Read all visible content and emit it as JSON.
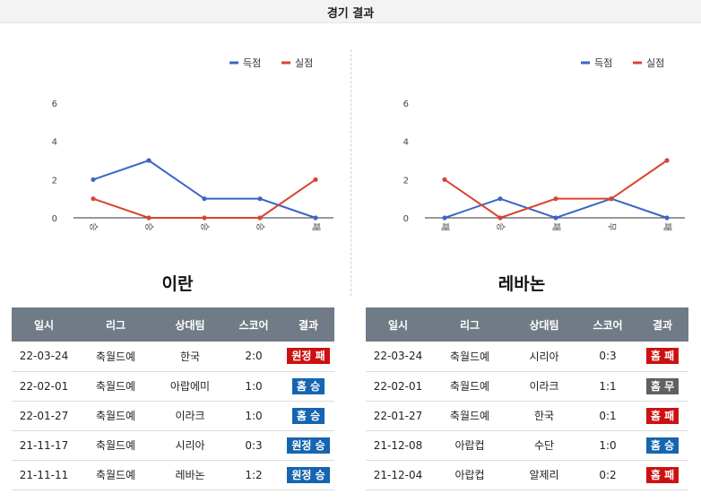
{
  "header": {
    "title": "경기 결과"
  },
  "colors": {
    "scored": "#3a66c4",
    "conceded": "#d9442e",
    "win": "#1565b0",
    "loss": "#cc1111",
    "draw": "#606060",
    "table_header": "#707b87"
  },
  "chart_data": [
    {
      "type": "line",
      "categories": [
        "승",
        "승",
        "승",
        "승",
        "패"
      ],
      "series": [
        {
          "name": "득점",
          "values": [
            2,
            3,
            1,
            1,
            0
          ]
        },
        {
          "name": "실점",
          "values": [
            1,
            0,
            0,
            0,
            2
          ]
        }
      ],
      "y_ticks": [
        "0",
        "2",
        "4",
        "6"
      ],
      "ylim": [
        0,
        6
      ],
      "legend": "top-right",
      "grid": false
    },
    {
      "type": "line",
      "categories": [
        "패",
        "승",
        "패",
        "무",
        "패"
      ],
      "series": [
        {
          "name": "득점",
          "values": [
            0,
            1,
            0,
            1,
            0
          ]
        },
        {
          "name": "실점",
          "values": [
            2,
            0,
            1,
            1,
            3
          ]
        }
      ],
      "y_ticks": [
        "0",
        "2",
        "4",
        "6"
      ],
      "ylim": [
        0,
        6
      ],
      "legend": "top-right",
      "grid": false
    }
  ],
  "teams": [
    {
      "name": "이란",
      "columns": [
        "일시",
        "리그",
        "상대팀",
        "스코어",
        "결과"
      ],
      "rows": [
        {
          "date": "22-03-24",
          "league": "축월드예",
          "opponent": "한국",
          "score": "2:0",
          "result": "원정 패",
          "type": "loss"
        },
        {
          "date": "22-02-01",
          "league": "축월드예",
          "opponent": "아랍에미",
          "score": "1:0",
          "result": "홈 승",
          "type": "win"
        },
        {
          "date": "22-01-27",
          "league": "축월드예",
          "opponent": "이라크",
          "score": "1:0",
          "result": "홈 승",
          "type": "win"
        },
        {
          "date": "21-11-17",
          "league": "축월드예",
          "opponent": "시리아",
          "score": "0:3",
          "result": "원정 승",
          "type": "win"
        },
        {
          "date": "21-11-11",
          "league": "축월드예",
          "opponent": "레바논",
          "score": "1:2",
          "result": "원정 승",
          "type": "win"
        }
      ]
    },
    {
      "name": "레바논",
      "columns": [
        "일시",
        "리그",
        "상대팀",
        "스코어",
        "결과"
      ],
      "rows": [
        {
          "date": "22-03-24",
          "league": "축월드예",
          "opponent": "시리아",
          "score": "0:3",
          "result": "홈 패",
          "type": "loss"
        },
        {
          "date": "22-02-01",
          "league": "축월드예",
          "opponent": "이라크",
          "score": "1:1",
          "result": "홈 무",
          "type": "draw"
        },
        {
          "date": "22-01-27",
          "league": "축월드예",
          "opponent": "한국",
          "score": "0:1",
          "result": "홈 패",
          "type": "loss"
        },
        {
          "date": "21-12-08",
          "league": "아랍컵",
          "opponent": "수단",
          "score": "1:0",
          "result": "홈 승",
          "type": "win"
        },
        {
          "date": "21-12-04",
          "league": "아랍컵",
          "opponent": "알제리",
          "score": "0:2",
          "result": "홈 패",
          "type": "loss"
        }
      ]
    }
  ]
}
